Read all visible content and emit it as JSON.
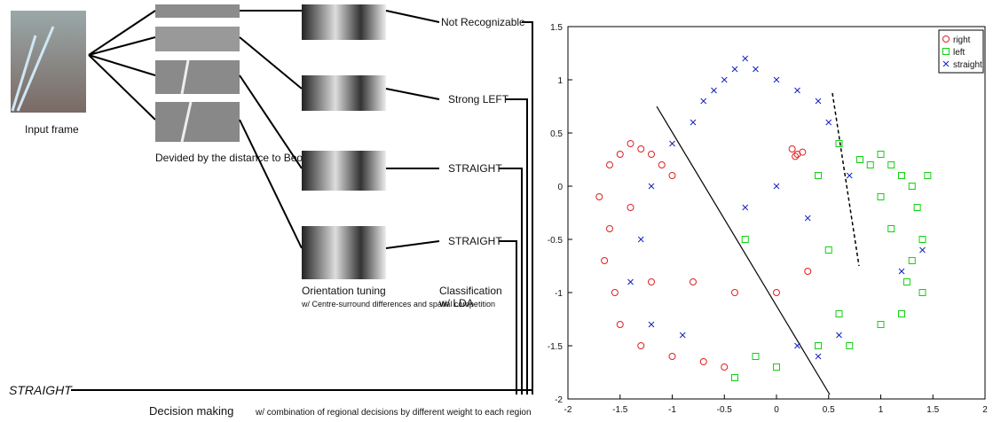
{
  "diagram": {
    "input_label": "Input frame",
    "divided_label": "Devided by the distance to Beobot",
    "orientation_label": "Orientation tuning",
    "orientation_note": "w/ Centre-surround differences and spatial competition",
    "classification_label": "Classification",
    "classification_note": "w/ LDA",
    "region_decisions": [
      "Not Recognizable",
      "Strong LEFT",
      "STRAIGHT",
      "STRAIGHT"
    ],
    "final_decision": "STRAIGHT",
    "decision_label": "Decision making",
    "decision_note": "w/ combination of regional decisions by different weight to each region"
  },
  "chart_data": {
    "type": "scatter",
    "xlim": [
      -2,
      2
    ],
    "ylim": [
      -2,
      1.5
    ],
    "xticks": [
      -2,
      -1.5,
      -1,
      -0.5,
      0,
      0.5,
      1,
      1.5,
      2
    ],
    "yticks": [
      -2,
      -1.5,
      -1,
      -0.5,
      0,
      0.5,
      1,
      1.5
    ],
    "legend": "upper right",
    "series": [
      {
        "name": "right",
        "color": "#e02020",
        "marker": "circle",
        "x": [
          -1.6,
          -1.5,
          -1.4,
          -1.3,
          -1.2,
          -1.1,
          -1.7,
          -1.6,
          -1.65,
          -1.55,
          -1.5,
          -1.3,
          -1.0,
          -0.7,
          -0.5,
          -1.2,
          -0.8,
          -0.4,
          0.0,
          0.3,
          0.15,
          0.2,
          0.25,
          0.18,
          -1.0,
          -1.4
        ],
        "y": [
          0.2,
          0.3,
          0.4,
          0.35,
          0.3,
          0.2,
          -0.1,
          -0.4,
          -0.7,
          -1.0,
          -1.3,
          -1.5,
          -1.6,
          -1.65,
          -1.7,
          -0.9,
          -0.9,
          -1.0,
          -1.0,
          -0.8,
          0.35,
          0.3,
          0.32,
          0.28,
          0.1,
          -0.2
        ]
      },
      {
        "name": "left",
        "color": "#10d010",
        "marker": "square",
        "x": [
          1.0,
          1.1,
          1.2,
          1.3,
          1.35,
          1.4,
          1.3,
          1.25,
          1.4,
          1.1,
          1.0,
          0.9,
          0.8,
          1.45,
          1.2,
          0.6,
          0.4,
          0.5,
          0.6,
          0.4,
          0.0,
          -0.2,
          -0.4,
          0.7,
          1.0,
          -0.3
        ],
        "y": [
          0.3,
          0.2,
          0.1,
          0.0,
          -0.2,
          -0.5,
          -0.7,
          -0.9,
          -1.0,
          -0.4,
          -0.1,
          0.2,
          0.25,
          0.1,
          -1.2,
          0.4,
          0.1,
          -0.6,
          -1.2,
          -1.5,
          -1.7,
          -1.6,
          -1.8,
          -1.5,
          -1.3,
          -0.5
        ]
      },
      {
        "name": "straight",
        "color": "#1020c0",
        "marker": "x",
        "x": [
          -0.8,
          -0.7,
          -0.6,
          -0.5,
          -0.4,
          -0.3,
          -0.2,
          0.0,
          0.2,
          0.4,
          0.5,
          -1.0,
          -1.2,
          -1.3,
          -1.4,
          -1.2,
          -0.9,
          0.2,
          0.4,
          0.6,
          0.0,
          -0.3,
          0.3,
          1.4,
          1.2,
          0.7
        ],
        "y": [
          0.6,
          0.8,
          0.9,
          1.0,
          1.1,
          1.2,
          1.1,
          1.0,
          0.9,
          0.8,
          0.6,
          0.4,
          0.0,
          -0.5,
          -0.9,
          -1.3,
          -1.4,
          -1.5,
          -1.6,
          -1.4,
          0.0,
          -0.2,
          -0.3,
          -0.6,
          -0.8,
          0.1
        ]
      }
    ]
  }
}
